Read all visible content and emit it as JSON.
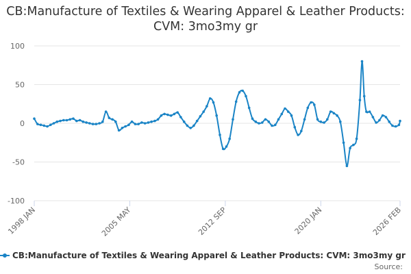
{
  "title": "CB:Manufacture of Textiles & Wearing Apparel & Leather Products: CVM: 3mo3my gr",
  "legend_label": "CB:Manufacture of Textiles & Wearing Apparel & Leather Products: CVM: 3mo3my gr",
  "source_label": "Source:",
  "colors": {
    "series": "#1a84c6",
    "grid": "#e6e6e6",
    "axis_text": "#666666"
  },
  "chart_data": {
    "type": "line",
    "title": "CB:Manufacture of Textiles & Wearing Apparel & Leather Products: CVM: 3mo3my gr",
    "ylim": [
      -100,
      100
    ],
    "y_ticks": [
      100,
      50,
      0,
      -50,
      -100
    ],
    "x_range": [
      "1998-01",
      "2026-02"
    ],
    "x_ticks": [
      "1998 JAN",
      "2005 MAY",
      "2012 SEP",
      "2020 JAN",
      "2026 FEB"
    ],
    "grid": "horizontal",
    "legend": "bottom",
    "series": [
      {
        "name": "CB:Manufacture of Textiles & Wearing Apparel & Leather Products: CVM: 3mo3my gr",
        "points": [
          [
            "1998-01",
            6
          ],
          [
            "1998-04",
            -1
          ],
          [
            "1998-07",
            -2
          ],
          [
            "1998-10",
            -3
          ],
          [
            "1999-01",
            -4
          ],
          [
            "1999-04",
            -2
          ],
          [
            "1999-07",
            0
          ],
          [
            "1999-10",
            2
          ],
          [
            "2000-01",
            3
          ],
          [
            "2000-04",
            4
          ],
          [
            "2000-07",
            4
          ],
          [
            "2000-10",
            5
          ],
          [
            "2001-01",
            6
          ],
          [
            "2001-04",
            3
          ],
          [
            "2001-07",
            4
          ],
          [
            "2001-10",
            2
          ],
          [
            "2002-01",
            1
          ],
          [
            "2002-04",
            0
          ],
          [
            "2002-07",
            -1
          ],
          [
            "2002-10",
            -1
          ],
          [
            "2003-01",
            0
          ],
          [
            "2003-04",
            2
          ],
          [
            "2003-07",
            15
          ],
          [
            "2003-10",
            7
          ],
          [
            "2004-01",
            5
          ],
          [
            "2004-04",
            2
          ],
          [
            "2004-07",
            -9
          ],
          [
            "2004-10",
            -6
          ],
          [
            "2005-01",
            -4
          ],
          [
            "2005-04",
            -2
          ],
          [
            "2005-07",
            2
          ],
          [
            "2005-10",
            -1
          ],
          [
            "2006-01",
            -1
          ],
          [
            "2006-04",
            1
          ],
          [
            "2006-07",
            0
          ],
          [
            "2006-10",
            1
          ],
          [
            "2007-01",
            2
          ],
          [
            "2007-04",
            3
          ],
          [
            "2007-07",
            5
          ],
          [
            "2007-10",
            10
          ],
          [
            "2008-01",
            12
          ],
          [
            "2008-04",
            11
          ],
          [
            "2008-07",
            10
          ],
          [
            "2008-10",
            12
          ],
          [
            "2009-01",
            14
          ],
          [
            "2009-04",
            8
          ],
          [
            "2009-07",
            2
          ],
          [
            "2009-10",
            -3
          ],
          [
            "2010-01",
            -6
          ],
          [
            "2010-04",
            -3
          ],
          [
            "2010-07",
            3
          ],
          [
            "2010-10",
            9
          ],
          [
            "2011-01",
            15
          ],
          [
            "2011-04",
            22
          ],
          [
            "2011-07",
            32
          ],
          [
            "2011-10",
            27
          ],
          [
            "2012-01",
            10
          ],
          [
            "2012-04",
            -15
          ],
          [
            "2012-07",
            -33
          ],
          [
            "2012-10",
            -30
          ],
          [
            "2013-01",
            -20
          ],
          [
            "2013-04",
            5
          ],
          [
            "2013-07",
            28
          ],
          [
            "2013-10",
            40
          ],
          [
            "2014-01",
            42
          ],
          [
            "2014-04",
            35
          ],
          [
            "2014-07",
            20
          ],
          [
            "2014-10",
            6
          ],
          [
            "2015-01",
            2
          ],
          [
            "2015-04",
            0
          ],
          [
            "2015-07",
            1
          ],
          [
            "2015-10",
            5
          ],
          [
            "2016-01",
            2
          ],
          [
            "2016-04",
            -3
          ],
          [
            "2016-07",
            -2
          ],
          [
            "2016-10",
            5
          ],
          [
            "2017-01",
            12
          ],
          [
            "2017-04",
            19
          ],
          [
            "2017-07",
            15
          ],
          [
            "2017-10",
            10
          ],
          [
            "2018-01",
            -5
          ],
          [
            "2018-04",
            -15
          ],
          [
            "2018-07",
            -10
          ],
          [
            "2018-10",
            5
          ],
          [
            "2019-01",
            20
          ],
          [
            "2019-04",
            27
          ],
          [
            "2019-07",
            24
          ],
          [
            "2019-10",
            5
          ],
          [
            "2020-01",
            2
          ],
          [
            "2020-04",
            1
          ],
          [
            "2020-07",
            5
          ],
          [
            "2020-10",
            15
          ],
          [
            "2021-01",
            13
          ],
          [
            "2021-04",
            10
          ],
          [
            "2021-07",
            2
          ],
          [
            "2021-10",
            -25
          ],
          [
            "2022-01",
            -55
          ],
          [
            "2022-04",
            -32
          ],
          [
            "2022-07",
            -28
          ],
          [
            "2022-10",
            -20
          ],
          [
            "2023-01",
            30
          ],
          [
            "2023-03",
            80
          ],
          [
            "2023-05",
            35
          ],
          [
            "2023-07",
            15
          ],
          [
            "2023-10",
            15
          ],
          [
            "2024-01",
            8
          ],
          [
            "2024-04",
            1
          ],
          [
            "2024-07",
            4
          ],
          [
            "2024-10",
            10
          ],
          [
            "2025-01",
            8
          ],
          [
            "2025-04",
            2
          ],
          [
            "2025-07",
            -3
          ],
          [
            "2025-10",
            -4
          ],
          [
            "2026-01",
            -2
          ],
          [
            "2026-02",
            3
          ]
        ]
      }
    ]
  }
}
